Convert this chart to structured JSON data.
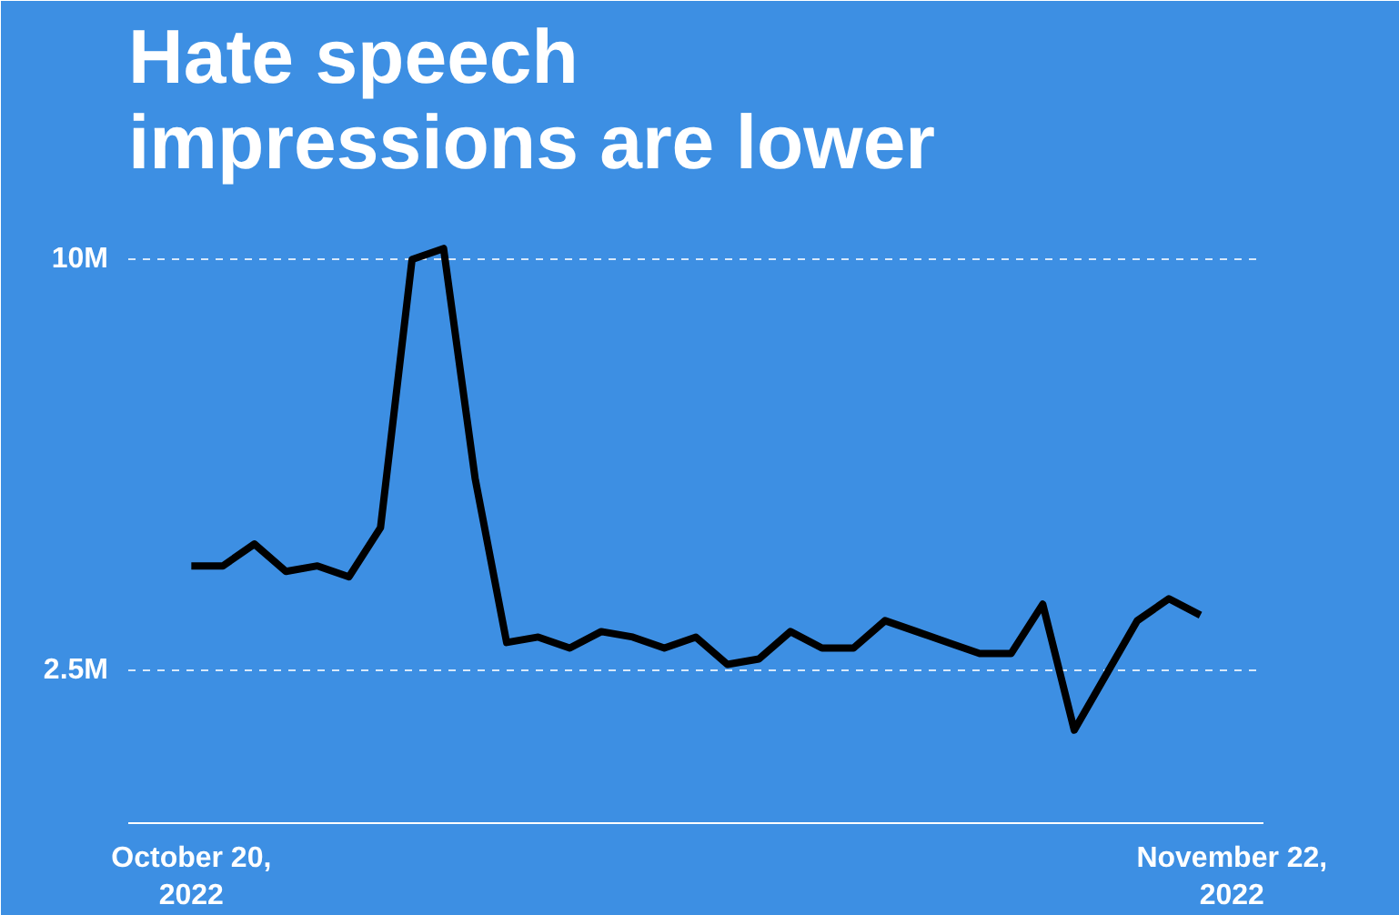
{
  "chart_data": {
    "type": "line",
    "title": "Hate speech\nimpressions are lower",
    "x": [
      "2022-10-20",
      "2022-10-21",
      "2022-10-22",
      "2022-10-23",
      "2022-10-24",
      "2022-10-25",
      "2022-10-26",
      "2022-10-27",
      "2022-10-28",
      "2022-10-29",
      "2022-10-30",
      "2022-10-31",
      "2022-11-01",
      "2022-11-02",
      "2022-11-03",
      "2022-11-04",
      "2022-11-05",
      "2022-11-06",
      "2022-11-07",
      "2022-11-08",
      "2022-11-09",
      "2022-11-10",
      "2022-11-11",
      "2022-11-12",
      "2022-11-13",
      "2022-11-14",
      "2022-11-15",
      "2022-11-16",
      "2022-11-17",
      "2022-11-18",
      "2022-11-19",
      "2022-11-20",
      "2022-11-21"
    ],
    "series": [
      {
        "color": "#000000",
        "values": [
          4.4,
          4.4,
          4.8,
          4.3,
          4.4,
          4.2,
          5.1,
          10.0,
          10.2,
          6.0,
          3.0,
          3.1,
          2.9,
          3.2,
          3.1,
          2.9,
          3.1,
          2.6,
          2.7,
          3.2,
          2.9,
          2.9,
          3.4,
          3.2,
          3.0,
          2.8,
          2.8,
          3.7,
          1.4,
          2.4,
          3.4,
          3.8,
          3.5
        ]
      }
    ],
    "ylim": [
      -0.3,
      11.2
    ],
    "yticks": [
      {
        "value": 2.5,
        "label": "2.5M"
      },
      {
        "value": 10,
        "label": "10M"
      }
    ],
    "xlim": [
      "2022-10-18",
      "2022-11-23"
    ],
    "xticks": [
      {
        "value": "2022-10-20",
        "label": "October 20,\n2022"
      },
      {
        "value": "2022-11-22",
        "label": "November 22,\n2022"
      }
    ],
    "grid": "y",
    "line_style": "solid",
    "marker": "none"
  }
}
